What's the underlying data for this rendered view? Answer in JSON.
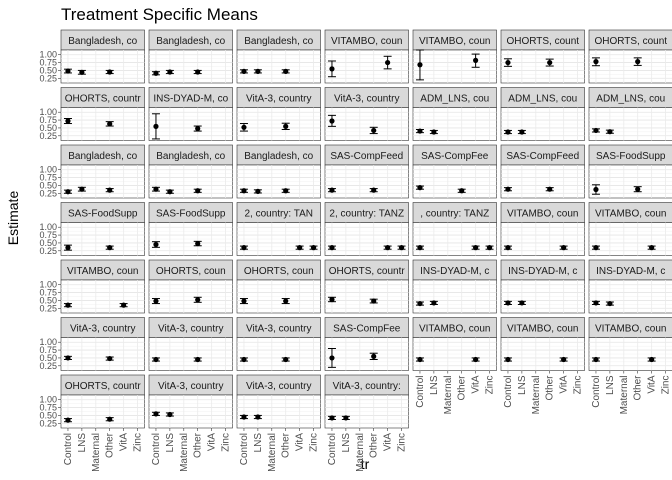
{
  "chart_data": {
    "type": "scatter",
    "title": "Treatment Specific Means",
    "xlabel": "tr",
    "ylabel": "Estimate",
    "categories": [
      "Control",
      "LNS",
      "Maternal",
      "Other",
      "VitA",
      "Zinc"
    ],
    "y_ticks": [
      "1.00",
      "0.75",
      "0.50",
      "0.25"
    ],
    "ylim": [
      0.1,
      1.15
    ],
    "grid": true,
    "facets": [
      {
        "label": "Bangladesh, co",
        "points": [
          {
            "x": "Control",
            "y": 0.48,
            "lo": 0.42,
            "hi": 0.54
          },
          {
            "x": "LNS",
            "y": 0.44,
            "lo": 0.38,
            "hi": 0.5
          },
          {
            "x": "Other",
            "y": 0.45,
            "lo": 0.4,
            "hi": 0.5
          }
        ]
      },
      {
        "label": "Bangladesh, co",
        "points": [
          {
            "x": "Control",
            "y": 0.41,
            "lo": 0.36,
            "hi": 0.46
          },
          {
            "x": "LNS",
            "y": 0.45,
            "lo": 0.4,
            "hi": 0.5
          },
          {
            "x": "Other",
            "y": 0.45,
            "lo": 0.4,
            "hi": 0.5
          }
        ]
      },
      {
        "label": "Bangladesh, co",
        "points": [
          {
            "x": "Control",
            "y": 0.47,
            "lo": 0.42,
            "hi": 0.52
          },
          {
            "x": "LNS",
            "y": 0.47,
            "lo": 0.42,
            "hi": 0.52
          },
          {
            "x": "Other",
            "y": 0.47,
            "lo": 0.42,
            "hi": 0.52
          }
        ]
      },
      {
        "label": "VITAMBO, coun",
        "points": [
          {
            "x": "Control",
            "y": 0.55,
            "lo": 0.3,
            "hi": 0.8
          },
          {
            "x": "VitA",
            "y": 0.75,
            "lo": 0.55,
            "hi": 0.95
          }
        ]
      },
      {
        "label": "VITAMBO, coun",
        "points": [
          {
            "x": "Control",
            "y": 0.68,
            "lo": 0.2,
            "hi": 1.15
          },
          {
            "x": "VitA",
            "y": 0.82,
            "lo": 0.6,
            "hi": 1.02
          }
        ]
      },
      {
        "label": "OHORTS, count",
        "points": [
          {
            "x": "Control",
            "y": 0.75,
            "lo": 0.63,
            "hi": 0.87
          },
          {
            "x": "Other",
            "y": 0.75,
            "lo": 0.64,
            "hi": 0.86
          }
        ]
      },
      {
        "label": "OHORTS, count",
        "points": [
          {
            "x": "Control",
            "y": 0.78,
            "lo": 0.65,
            "hi": 0.9
          },
          {
            "x": "Other",
            "y": 0.78,
            "lo": 0.66,
            "hi": 0.9
          }
        ]
      },
      {
        "label": "OHORTS, countr",
        "points": [
          {
            "x": "Control",
            "y": 0.72,
            "lo": 0.64,
            "hi": 0.8
          },
          {
            "x": "Other",
            "y": 0.63,
            "lo": 0.56,
            "hi": 0.7
          }
        ]
      },
      {
        "label": "INS-DYAD-M, co",
        "points": [
          {
            "x": "Control",
            "y": 0.55,
            "lo": 0.15,
            "hi": 0.95
          },
          {
            "x": "Other",
            "y": 0.48,
            "lo": 0.4,
            "hi": 0.56
          }
        ]
      },
      {
        "label": "VitA-3, country",
        "points": [
          {
            "x": "Control",
            "y": 0.52,
            "lo": 0.4,
            "hi": 0.64
          },
          {
            "x": "Other",
            "y": 0.55,
            "lo": 0.45,
            "hi": 0.65
          }
        ]
      },
      {
        "label": "VitA-3, country",
        "points": [
          {
            "x": "Control",
            "y": 0.72,
            "lo": 0.55,
            "hi": 0.9
          },
          {
            "x": "Other",
            "y": 0.42,
            "lo": 0.32,
            "hi": 0.52
          }
        ]
      },
      {
        "label": "ADM_LNS, cou",
        "points": [
          {
            "x": "Control",
            "y": 0.4,
            "lo": 0.35,
            "hi": 0.45
          },
          {
            "x": "LNS",
            "y": 0.37,
            "lo": 0.32,
            "hi": 0.42
          }
        ]
      },
      {
        "label": "ADM_LNS, cou",
        "points": [
          {
            "x": "Control",
            "y": 0.37,
            "lo": 0.32,
            "hi": 0.42
          },
          {
            "x": "LNS",
            "y": 0.37,
            "lo": 0.32,
            "hi": 0.42
          }
        ]
      },
      {
        "label": "ADM_LNS, cou",
        "points": [
          {
            "x": "Control",
            "y": 0.42,
            "lo": 0.37,
            "hi": 0.47
          },
          {
            "x": "LNS",
            "y": 0.38,
            "lo": 0.33,
            "hi": 0.43
          }
        ]
      },
      {
        "label": "Bangladesh, co",
        "points": [
          {
            "x": "Control",
            "y": 0.3,
            "lo": 0.25,
            "hi": 0.35
          },
          {
            "x": "LNS",
            "y": 0.38,
            "lo": 0.32,
            "hi": 0.44
          },
          {
            "x": "Other",
            "y": 0.35,
            "lo": 0.3,
            "hi": 0.4
          }
        ]
      },
      {
        "label": "Bangladesh, co",
        "points": [
          {
            "x": "Control",
            "y": 0.38,
            "lo": 0.32,
            "hi": 0.44
          },
          {
            "x": "LNS",
            "y": 0.3,
            "lo": 0.25,
            "hi": 0.35
          },
          {
            "x": "Other",
            "y": 0.33,
            "lo": 0.28,
            "hi": 0.38
          }
        ]
      },
      {
        "label": "Bangladesh, co",
        "points": [
          {
            "x": "Control",
            "y": 0.33,
            "lo": 0.28,
            "hi": 0.38
          },
          {
            "x": "LNS",
            "y": 0.31,
            "lo": 0.26,
            "hi": 0.36
          },
          {
            "x": "Other",
            "y": 0.33,
            "lo": 0.28,
            "hi": 0.38
          }
        ]
      },
      {
        "label": "SAS-CompFeed",
        "points": [
          {
            "x": "Control",
            "y": 0.35,
            "lo": 0.3,
            "hi": 0.4
          },
          {
            "x": "Other",
            "y": 0.35,
            "lo": 0.3,
            "hi": 0.4
          }
        ]
      },
      {
        "label": "SAS-CompFee",
        "points": [
          {
            "x": "Control",
            "y": 0.43,
            "lo": 0.38,
            "hi": 0.48
          },
          {
            "x": "Other",
            "y": 0.33,
            "lo": 0.28,
            "hi": 0.38
          }
        ]
      },
      {
        "label": "SAS-CompFeed",
        "points": [
          {
            "x": "Control",
            "y": 0.38,
            "lo": 0.33,
            "hi": 0.43
          },
          {
            "x": "Other",
            "y": 0.38,
            "lo": 0.33,
            "hi": 0.43
          }
        ]
      },
      {
        "label": "SAS-FoodSupp",
        "points": [
          {
            "x": "Control",
            "y": 0.37,
            "lo": 0.22,
            "hi": 0.52
          },
          {
            "x": "Other",
            "y": 0.38,
            "lo": 0.3,
            "hi": 0.46
          }
        ]
      },
      {
        "label": "SAS-FoodSupp",
        "points": [
          {
            "x": "Control",
            "y": 0.35,
            "lo": 0.27,
            "hi": 0.43
          },
          {
            "x": "Other",
            "y": 0.35,
            "lo": 0.3,
            "hi": 0.4
          }
        ]
      },
      {
        "label": "SAS-FoodSupp",
        "points": [
          {
            "x": "Control",
            "y": 0.45,
            "lo": 0.36,
            "hi": 0.54
          },
          {
            "x": "Other",
            "y": 0.48,
            "lo": 0.41,
            "hi": 0.55
          }
        ]
      },
      {
        "label": "2, country: TAN",
        "points": [
          {
            "x": "Control",
            "y": 0.35,
            "lo": 0.3,
            "hi": 0.4
          },
          {
            "x": "VitA",
            "y": 0.35,
            "lo": 0.3,
            "hi": 0.4
          },
          {
            "x": "Zinc",
            "y": 0.35,
            "lo": 0.3,
            "hi": 0.4
          }
        ]
      },
      {
        "label": "2, country: TANZ",
        "points": [
          {
            "x": "Control",
            "y": 0.35,
            "lo": 0.3,
            "hi": 0.4
          },
          {
            "x": "VitA",
            "y": 0.35,
            "lo": 0.3,
            "hi": 0.4
          },
          {
            "x": "Zinc",
            "y": 0.35,
            "lo": 0.3,
            "hi": 0.4
          }
        ]
      },
      {
        "label": ", country: TANZ",
        "points": [
          {
            "x": "Control",
            "y": 0.35,
            "lo": 0.3,
            "hi": 0.4
          },
          {
            "x": "VitA",
            "y": 0.35,
            "lo": 0.3,
            "hi": 0.4
          },
          {
            "x": "Zinc",
            "y": 0.35,
            "lo": 0.3,
            "hi": 0.4
          }
        ]
      },
      {
        "label": "VITAMBO, coun",
        "points": [
          {
            "x": "Control",
            "y": 0.35,
            "lo": 0.3,
            "hi": 0.4
          },
          {
            "x": "VitA",
            "y": 0.35,
            "lo": 0.3,
            "hi": 0.4
          }
        ]
      },
      {
        "label": "VITAMBO, coun",
        "points": [
          {
            "x": "Control",
            "y": 0.35,
            "lo": 0.3,
            "hi": 0.4
          },
          {
            "x": "VitA",
            "y": 0.35,
            "lo": 0.3,
            "hi": 0.4
          }
        ]
      },
      {
        "label": "VITAMBO, coun",
        "points": [
          {
            "x": "Control",
            "y": 0.35,
            "lo": 0.3,
            "hi": 0.4
          },
          {
            "x": "VitA",
            "y": 0.35,
            "lo": 0.3,
            "hi": 0.4
          }
        ]
      },
      {
        "label": "OHORTS, coun",
        "points": [
          {
            "x": "Control",
            "y": 0.48,
            "lo": 0.4,
            "hi": 0.56
          },
          {
            "x": "Other",
            "y": 0.52,
            "lo": 0.44,
            "hi": 0.6
          }
        ]
      },
      {
        "label": "OHORTS, coun",
        "points": [
          {
            "x": "Control",
            "y": 0.48,
            "lo": 0.4,
            "hi": 0.56
          },
          {
            "x": "Other",
            "y": 0.48,
            "lo": 0.4,
            "hi": 0.56
          }
        ]
      },
      {
        "label": "OHORTS, countr",
        "points": [
          {
            "x": "Control",
            "y": 0.53,
            "lo": 0.46,
            "hi": 0.6
          },
          {
            "x": "Other",
            "y": 0.48,
            "lo": 0.42,
            "hi": 0.54
          }
        ]
      },
      {
        "label": "INS-DYAD-M, c",
        "points": [
          {
            "x": "Control",
            "y": 0.4,
            "lo": 0.35,
            "hi": 0.45
          },
          {
            "x": "LNS",
            "y": 0.42,
            "lo": 0.37,
            "hi": 0.47
          }
        ]
      },
      {
        "label": "INS-DYAD-M, c",
        "points": [
          {
            "x": "Control",
            "y": 0.42,
            "lo": 0.37,
            "hi": 0.47
          },
          {
            "x": "LNS",
            "y": 0.42,
            "lo": 0.37,
            "hi": 0.47
          }
        ]
      },
      {
        "label": "INS-DYAD-M, c",
        "points": [
          {
            "x": "Control",
            "y": 0.42,
            "lo": 0.37,
            "hi": 0.47
          },
          {
            "x": "LNS",
            "y": 0.4,
            "lo": 0.35,
            "hi": 0.45
          }
        ]
      },
      {
        "label": "VitA-3, country",
        "points": [
          {
            "x": "Control",
            "y": 0.5,
            "lo": 0.45,
            "hi": 0.55
          },
          {
            "x": "Other",
            "y": 0.48,
            "lo": 0.43,
            "hi": 0.53
          }
        ]
      },
      {
        "label": "VitA-3, country",
        "points": [
          {
            "x": "Control",
            "y": 0.45,
            "lo": 0.4,
            "hi": 0.5
          },
          {
            "x": "Other",
            "y": 0.45,
            "lo": 0.4,
            "hi": 0.5
          }
        ]
      },
      {
        "label": "VitA-3, country",
        "points": [
          {
            "x": "Control",
            "y": 0.45,
            "lo": 0.4,
            "hi": 0.5
          },
          {
            "x": "Other",
            "y": 0.45,
            "lo": 0.4,
            "hi": 0.5
          }
        ]
      },
      {
        "label": "SAS-CompFee",
        "points": [
          {
            "x": "Control",
            "y": 0.5,
            "lo": 0.2,
            "hi": 0.8
          },
          {
            "x": "Other",
            "y": 0.55,
            "lo": 0.45,
            "hi": 0.65
          }
        ]
      },
      {
        "label": "VITAMBO, coun",
        "points": [
          {
            "x": "Control",
            "y": 0.45,
            "lo": 0.4,
            "hi": 0.5
          },
          {
            "x": "VitA",
            "y": 0.45,
            "lo": 0.4,
            "hi": 0.5
          }
        ]
      },
      {
        "label": "VITAMBO, coun",
        "points": [
          {
            "x": "Control",
            "y": 0.45,
            "lo": 0.4,
            "hi": 0.5
          },
          {
            "x": "VitA",
            "y": 0.45,
            "lo": 0.4,
            "hi": 0.5
          }
        ]
      },
      {
        "label": "VITAMBO, coun",
        "points": [
          {
            "x": "Control",
            "y": 0.45,
            "lo": 0.4,
            "hi": 0.5
          },
          {
            "x": "VitA",
            "y": 0.45,
            "lo": 0.4,
            "hi": 0.5
          }
        ]
      },
      {
        "label": "OHORTS, countr",
        "points": [
          {
            "x": "Control",
            "y": 0.35,
            "lo": 0.3,
            "hi": 0.4
          },
          {
            "x": "Other",
            "y": 0.38,
            "lo": 0.33,
            "hi": 0.43
          }
        ]
      },
      {
        "label": "VitA-3, country",
        "points": [
          {
            "x": "Control",
            "y": 0.55,
            "lo": 0.5,
            "hi": 0.6
          },
          {
            "x": "LNS",
            "y": 0.53,
            "lo": 0.48,
            "hi": 0.58
          }
        ]
      },
      {
        "label": "VitA-3, country",
        "points": [
          {
            "x": "Control",
            "y": 0.45,
            "lo": 0.4,
            "hi": 0.5
          },
          {
            "x": "LNS",
            "y": 0.45,
            "lo": 0.4,
            "hi": 0.5
          }
        ]
      },
      {
        "label": "VitA-3, country:",
        "points": [
          {
            "x": "Control",
            "y": 0.42,
            "lo": 0.37,
            "hi": 0.47
          },
          {
            "x": "LNS",
            "y": 0.42,
            "lo": 0.37,
            "hi": 0.47
          }
        ]
      }
    ]
  }
}
